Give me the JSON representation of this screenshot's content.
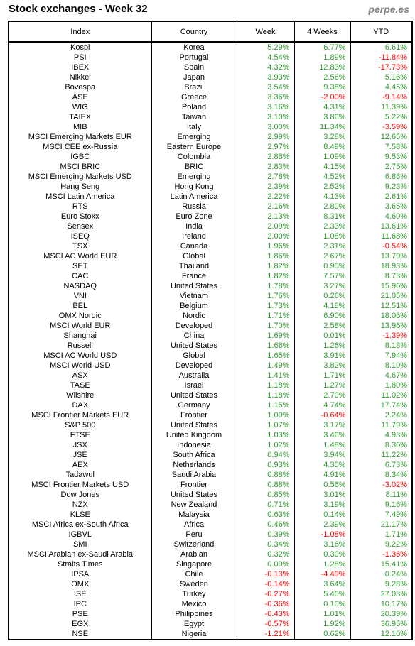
{
  "header": {
    "title": "Stock exchanges - Week 32",
    "brand": "perpe.es"
  },
  "table": {
    "columns": [
      "Index",
      "Country",
      "Week",
      "4 Weeks",
      "YTD"
    ],
    "rows": [
      [
        "Kospi",
        "Korea",
        "5.29%",
        "6.77%",
        "6.61%"
      ],
      [
        "PSI",
        "Portugal",
        "4.54%",
        "1.89%",
        "-11.84%"
      ],
      [
        "IBEX",
        "Spain",
        "4.32%",
        "12.83%",
        "-17.73%"
      ],
      [
        "Nikkei",
        "Japan",
        "3.93%",
        "2.56%",
        "5.16%"
      ],
      [
        "Bovespa",
        "Brazil",
        "3.54%",
        "9.38%",
        "4.45%"
      ],
      [
        "ASE",
        "Greece",
        "3.36%",
        "-2.00%",
        "-9.14%"
      ],
      [
        "WIG",
        "Poland",
        "3.16%",
        "4.31%",
        "11.39%"
      ],
      [
        "TAIEX",
        "Taiwan",
        "3.10%",
        "3.86%",
        "5.22%"
      ],
      [
        "MIB",
        "Italy",
        "3.00%",
        "11.34%",
        "-3.59%"
      ],
      [
        "MSCI Emerging Markets EUR",
        "Emerging",
        "2.99%",
        "3.28%",
        "12.65%"
      ],
      [
        "MSCI CEE ex-Russia",
        "Eastern Europe",
        "2.97%",
        "8.49%",
        "7.58%"
      ],
      [
        "IGBC",
        "Colombia",
        "2.86%",
        "1.09%",
        "9.53%"
      ],
      [
        "MSCI BRIC",
        "BRIC",
        "2.83%",
        "4.15%",
        "2.75%"
      ],
      [
        "MSCI Emerging Markets USD",
        "Emerging",
        "2.78%",
        "4.52%",
        "6.86%"
      ],
      [
        "Hang Seng",
        "Hong Kong",
        "2.39%",
        "2.52%",
        "9.23%"
      ],
      [
        "MSCI Latin America",
        "Latin America",
        "2.22%",
        "4.13%",
        "2.61%"
      ],
      [
        "RTS",
        "Russia",
        "2.16%",
        "2.80%",
        "3.65%"
      ],
      [
        "Euro Stoxx",
        "Euro Zone",
        "2.13%",
        "8.31%",
        "4.60%"
      ],
      [
        "Sensex",
        "India",
        "2.09%",
        "2.33%",
        "13.61%"
      ],
      [
        "ISEQ",
        "Ireland",
        "2.00%",
        "1.08%",
        "11.68%"
      ],
      [
        "TSX",
        "Canada",
        "1.96%",
        "2.31%",
        "-0.54%"
      ],
      [
        "MSCI AC World EUR",
        "Global",
        "1.86%",
        "2.67%",
        "13.79%"
      ],
      [
        "SET",
        "Thailand",
        "1.82%",
        "0.90%",
        "18.93%"
      ],
      [
        "CAC",
        "France",
        "1.82%",
        "7.57%",
        "8.73%"
      ],
      [
        "NASDAQ",
        "United States",
        "1.78%",
        "3.27%",
        "15.96%"
      ],
      [
        "VNI",
        "Vietnam",
        "1.76%",
        "0.26%",
        "21.05%"
      ],
      [
        "BEL",
        "Belgium",
        "1.73%",
        "4.18%",
        "12.51%"
      ],
      [
        "OMX Nordic",
        "Nordic",
        "1.71%",
        "6.90%",
        "18.06%"
      ],
      [
        "MSCI World EUR",
        "Developed",
        "1.70%",
        "2.58%",
        "13.96%"
      ],
      [
        "Shanghai",
        "China",
        "1.69%",
        "0.01%",
        "-1.39%"
      ],
      [
        "Russell",
        "United States",
        "1.66%",
        "1.26%",
        "8.18%"
      ],
      [
        "MSCI AC World USD",
        "Global",
        "1.65%",
        "3.91%",
        "7.94%"
      ],
      [
        "MSCI World USD",
        "Developed",
        "1.49%",
        "3.82%",
        "8.10%"
      ],
      [
        "ASX",
        "Australia",
        "1.41%",
        "1.71%",
        "4.67%"
      ],
      [
        "TASE",
        "Israel",
        "1.18%",
        "1.27%",
        "1.80%"
      ],
      [
        "Wilshire",
        "United States",
        "1.18%",
        "2.70%",
        "11.02%"
      ],
      [
        "DAX",
        "Germany",
        "1.15%",
        "4.74%",
        "17.74%"
      ],
      [
        "MSCI Frontier Markets EUR",
        "Frontier",
        "1.09%",
        "-0.64%",
        "2.24%"
      ],
      [
        "S&P 500",
        "United States",
        "1.07%",
        "3.17%",
        "11.79%"
      ],
      [
        "FTSE",
        "United Kingdom",
        "1.03%",
        "3.46%",
        "4.93%"
      ],
      [
        "JSX",
        "Indonesia",
        "1.02%",
        "1.48%",
        "8.36%"
      ],
      [
        "JSE",
        "South Africa",
        "0.94%",
        "3.94%",
        "11.22%"
      ],
      [
        "AEX",
        "Netherlands",
        "0.93%",
        "4.30%",
        "6.73%"
      ],
      [
        "Tadawul",
        "Saudi Arabia",
        "0.88%",
        "4.91%",
        "8.34%"
      ],
      [
        "MSCI Frontier Markets USD",
        "Frontier",
        "0.88%",
        "0.56%",
        "-3.02%"
      ],
      [
        "Dow Jones",
        "United States",
        "0.85%",
        "3.01%",
        "8.11%"
      ],
      [
        "NZX",
        "New Zealand",
        "0.71%",
        "3.19%",
        "9.16%"
      ],
      [
        "KLSE",
        "Malaysia",
        "0.63%",
        "0.14%",
        "7.49%"
      ],
      [
        "MSCI Africa ex-South Africa",
        "Africa",
        "0.46%",
        "2.39%",
        "21.17%"
      ],
      [
        "IGBVL",
        "Peru",
        "0.39%",
        "-1.08%",
        "1.71%"
      ],
      [
        "SMI",
        "Switzerland",
        "0.34%",
        "3.16%",
        "9.22%"
      ],
      [
        "MSCI Arabian ex-Saudi Arabia",
        "Arabian",
        "0.32%",
        "0.30%",
        "-1.36%"
      ],
      [
        "Straits Times",
        "Singapore",
        "0.09%",
        "1.28%",
        "15.41%"
      ],
      [
        "IPSA",
        "Chile",
        "-0.13%",
        "-4.49%",
        "0.24%"
      ],
      [
        "OMX",
        "Sweden",
        "-0.14%",
        "3.64%",
        "9.28%"
      ],
      [
        "ISE",
        "Turkey",
        "-0.27%",
        "5.40%",
        "27.03%"
      ],
      [
        "IPC",
        "Mexico",
        "-0.36%",
        "0.10%",
        "10.17%"
      ],
      [
        "PSE",
        "Philippines",
        "-0.43%",
        "1.01%",
        "20.39%"
      ],
      [
        "EGX",
        "Egypt",
        "-0.57%",
        "1.92%",
        "36.95%"
      ],
      [
        "NSE",
        "Nigeria",
        "-1.21%",
        "0.62%",
        "12.10%"
      ]
    ]
  }
}
